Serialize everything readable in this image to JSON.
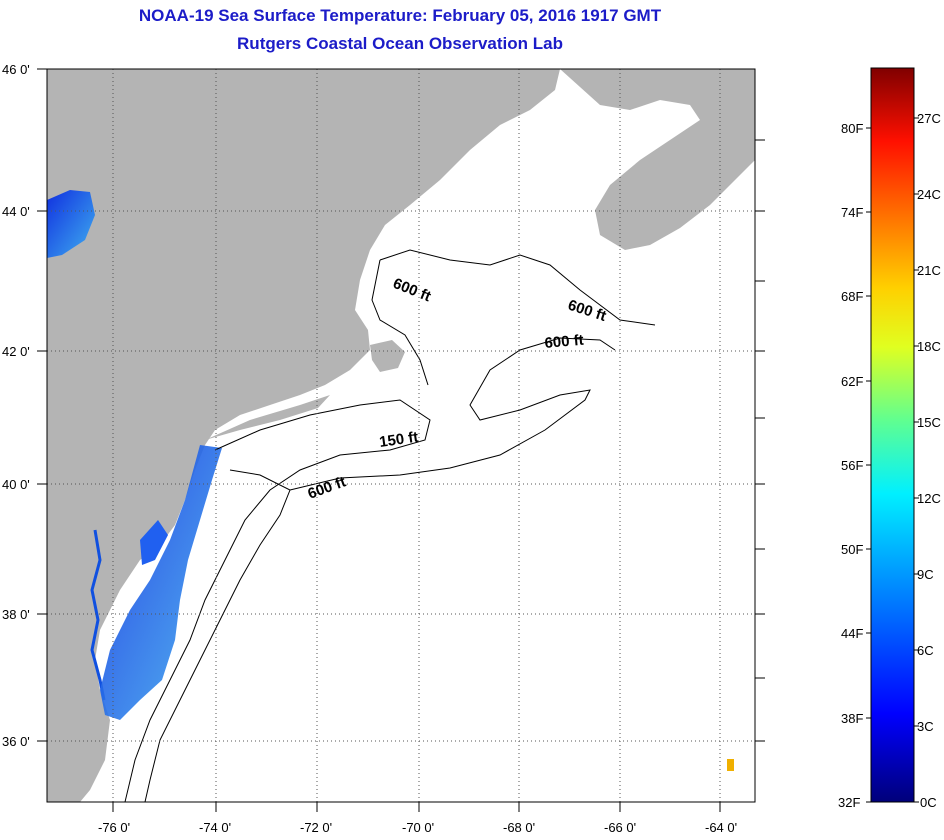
{
  "title_line1": "NOAA-19 Sea Surface Temperature:  February 05, 2016 1917 GMT",
  "title_line2": "Rutgers Coastal Ocean Observation Lab",
  "map": {
    "lon_range": [
      -77,
      -63
    ],
    "lat_range": [
      35,
      46
    ],
    "lon_ticks": [
      "-76 0'",
      "-74 0'",
      "-72 0'",
      "-70 0'",
      "-68 0'",
      "-66 0'",
      "-64 0'"
    ],
    "lat_ticks": [
      "46 0'",
      "44 0'",
      "42 0'",
      "40 0'",
      "38 0'",
      "36 0'"
    ],
    "contour_labels": [
      "600 ft",
      "600 ft",
      "600 ft",
      "150 ft",
      "600 ft"
    ],
    "colors": {
      "land": "#b4b4b4",
      "ocean_no_data": "#ffffff",
      "grid": "#555555"
    }
  },
  "colorbar": {
    "fahrenheit_labels": [
      "80F",
      "74F",
      "68F",
      "62F",
      "56F",
      "50F",
      "44F",
      "38F",
      "32F"
    ],
    "celsius_labels": [
      "27C",
      "24C",
      "21C",
      "18C",
      "15C",
      "12C",
      "9C",
      "6C",
      "3C",
      "0C"
    ],
    "colors": [
      "#000080",
      "#0000ff",
      "#0080ff",
      "#00ffff",
      "#80ff80",
      "#ffff00",
      "#ff8000",
      "#ff0000",
      "#800000"
    ]
  }
}
